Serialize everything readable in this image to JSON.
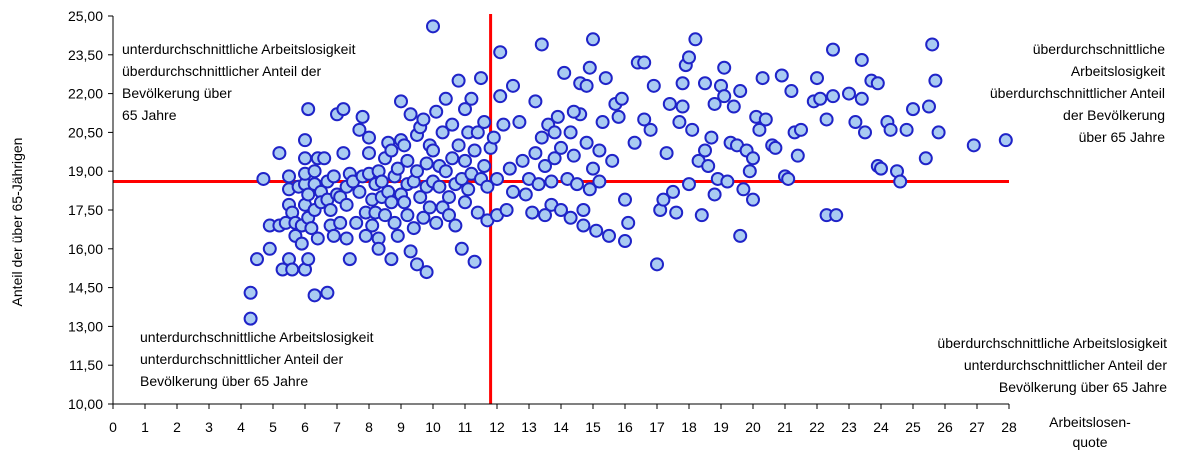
{
  "chart_data": {
    "type": "scatter",
    "title": "",
    "xlabel_lines": [
      "Arbeitslosen-",
      "quote"
    ],
    "ylabel": "Anteil der über 65-Jährigen",
    "xlim": [
      0,
      28
    ],
    "ylim": [
      10,
      25
    ],
    "x_ticks": [
      "0",
      "1",
      "2",
      "3",
      "4",
      "5",
      "6",
      "7",
      "8",
      "9",
      "10",
      "11",
      "12",
      "13",
      "14",
      "15",
      "16",
      "17",
      "18",
      "19",
      "20",
      "21",
      "22",
      "23",
      "24",
      "25",
      "26",
      "27",
      "28"
    ],
    "y_ticks": [
      "10,00",
      "11,50",
      "13,00",
      "14,50",
      "16,00",
      "17,50",
      "19,00",
      "20,50",
      "22,00",
      "23,50",
      "25,00"
    ],
    "grid": false,
    "reference_lines": {
      "x": 11.8,
      "y": 18.6,
      "color": "#ff0000"
    },
    "marker": {
      "fill": "#a9cbf2",
      "stroke": "#1f23c8"
    },
    "quadrant_labels": {
      "top_left": [
        "unterdurchschnittliche Arbeitslosigkeit",
        "überdurchschnittlicher Anteil der",
        "Bevölkerung über",
        "65 Jahre"
      ],
      "top_right": [
        "überdurchschnittliche",
        "Arbeitslosigkeit",
        "überdurchschnittlicher Anteil",
        "der Bevölkerung",
        "über 65 Jahre"
      ],
      "bottom_left": [
        "unterdurchschnittliche Arbeitslosigkeit",
        "unterdurchschnittlicher Anteil der",
        "Bevölkerung über 65 Jahre"
      ],
      "bottom_right": [
        "überdurchschnittliche Arbeitslosigkeit",
        "unterdurchschnittlicher Anteil der",
        "Bevölkerung über 65 Jahre"
      ]
    },
    "points": [
      [
        4.3,
        13.3
      ],
      [
        4.3,
        14.3
      ],
      [
        4.5,
        15.6
      ],
      [
        4.7,
        18.7
      ],
      [
        4.9,
        16.9
      ],
      [
        4.9,
        16.0
      ],
      [
        5.2,
        16.9
      ],
      [
        5.2,
        19.7
      ],
      [
        5.3,
        15.2
      ],
      [
        5.4,
        17.0
      ],
      [
        5.5,
        18.8
      ],
      [
        5.5,
        17.7
      ],
      [
        5.5,
        18.3
      ],
      [
        5.5,
        15.6
      ],
      [
        5.6,
        15.2
      ],
      [
        5.6,
        17.4
      ],
      [
        5.7,
        16.5
      ],
      [
        5.7,
        17.0
      ],
      [
        5.8,
        18.4
      ],
      [
        5.9,
        16.9
      ],
      [
        5.9,
        16.2
      ],
      [
        6.0,
        15.2
      ],
      [
        6.0,
        17.7
      ],
      [
        6.0,
        18.5
      ],
      [
        6.0,
        18.9
      ],
      [
        6.0,
        19.5
      ],
      [
        6.0,
        20.2
      ],
      [
        6.1,
        21.4
      ],
      [
        6.1,
        18.1
      ],
      [
        6.1,
        17.2
      ],
      [
        6.1,
        15.6
      ],
      [
        6.2,
        16.8
      ],
      [
        6.3,
        14.2
      ],
      [
        6.3,
        19.0
      ],
      [
        6.3,
        18.5
      ],
      [
        6.3,
        17.5
      ],
      [
        6.4,
        16.4
      ],
      [
        6.4,
        19.5
      ],
      [
        6.5,
        18.2
      ],
      [
        6.5,
        17.8
      ],
      [
        6.6,
        19.5
      ],
      [
        6.7,
        14.3
      ],
      [
        6.7,
        18.6
      ],
      [
        6.7,
        17.9
      ],
      [
        6.8,
        17.5
      ],
      [
        6.8,
        16.9
      ],
      [
        6.9,
        18.8
      ],
      [
        6.9,
        16.5
      ],
      [
        7.0,
        18.1
      ],
      [
        7.0,
        21.2
      ],
      [
        7.1,
        17.0
      ],
      [
        7.1,
        18.0
      ],
      [
        7.2,
        19.7
      ],
      [
        7.2,
        21.4
      ],
      [
        7.3,
        18.4
      ],
      [
        7.3,
        17.7
      ],
      [
        7.3,
        16.4
      ],
      [
        7.4,
        15.6
      ],
      [
        7.4,
        18.9
      ],
      [
        7.5,
        18.6
      ],
      [
        7.6,
        17.0
      ],
      [
        7.7,
        18.2
      ],
      [
        7.7,
        20.6
      ],
      [
        7.8,
        21.1
      ],
      [
        7.8,
        18.8
      ],
      [
        7.9,
        17.4
      ],
      [
        7.9,
        16.5
      ],
      [
        8.0,
        18.9
      ],
      [
        8.0,
        19.7
      ],
      [
        8.0,
        20.3
      ],
      [
        8.1,
        17.9
      ],
      [
        8.1,
        16.9
      ],
      [
        8.2,
        18.5
      ],
      [
        8.2,
        17.4
      ],
      [
        8.3,
        16.4
      ],
      [
        8.3,
        19.0
      ],
      [
        8.3,
        16.0
      ],
      [
        8.4,
        18.6
      ],
      [
        8.4,
        18.0
      ],
      [
        8.5,
        17.3
      ],
      [
        8.5,
        19.5
      ],
      [
        8.6,
        18.2
      ],
      [
        8.6,
        20.1
      ],
      [
        8.7,
        15.6
      ],
      [
        8.7,
        17.8
      ],
      [
        8.7,
        19.8
      ],
      [
        8.8,
        18.8
      ],
      [
        8.8,
        17.0
      ],
      [
        8.9,
        19.1
      ],
      [
        8.9,
        16.5
      ],
      [
        9.0,
        20.2
      ],
      [
        9.0,
        18.1
      ],
      [
        9.0,
        21.7
      ],
      [
        9.1,
        17.8
      ],
      [
        9.1,
        20.0
      ],
      [
        9.2,
        18.5
      ],
      [
        9.2,
        17.3
      ],
      [
        9.2,
        19.4
      ],
      [
        9.3,
        15.9
      ],
      [
        9.3,
        21.2
      ],
      [
        9.4,
        18.6
      ],
      [
        9.4,
        16.8
      ],
      [
        9.5,
        20.4
      ],
      [
        9.5,
        19.0
      ],
      [
        9.5,
        15.4
      ],
      [
        9.6,
        20.7
      ],
      [
        9.6,
        18.0
      ],
      [
        9.7,
        21.0
      ],
      [
        9.7,
        17.2
      ],
      [
        9.8,
        15.1
      ],
      [
        9.8,
        19.3
      ],
      [
        9.8,
        18.4
      ],
      [
        9.9,
        20.0
      ],
      [
        9.9,
        17.6
      ],
      [
        10.0,
        24.6
      ],
      [
        10.0,
        19.8
      ],
      [
        10.0,
        18.6
      ],
      [
        10.1,
        21.3
      ],
      [
        10.1,
        17.0
      ],
      [
        10.2,
        19.2
      ],
      [
        10.2,
        18.4
      ],
      [
        10.3,
        20.5
      ],
      [
        10.3,
        17.6
      ],
      [
        10.4,
        21.8
      ],
      [
        10.4,
        19.0
      ],
      [
        10.5,
        18.0
      ],
      [
        10.5,
        17.3
      ],
      [
        10.6,
        20.8
      ],
      [
        10.6,
        19.5
      ],
      [
        10.7,
        18.5
      ],
      [
        10.7,
        16.9
      ],
      [
        10.8,
        22.5
      ],
      [
        10.8,
        20.0
      ],
      [
        10.9,
        18.7
      ],
      [
        10.9,
        16.0
      ],
      [
        11.0,
        21.4
      ],
      [
        11.0,
        19.4
      ],
      [
        11.0,
        17.8
      ],
      [
        11.1,
        18.3
      ],
      [
        11.1,
        20.5
      ],
      [
        11.2,
        21.8
      ],
      [
        11.2,
        18.9
      ],
      [
        11.3,
        15.5
      ],
      [
        11.3,
        19.8
      ],
      [
        11.4,
        17.4
      ],
      [
        11.4,
        20.5
      ],
      [
        11.5,
        22.6
      ],
      [
        11.5,
        18.7
      ],
      [
        11.6,
        20.9
      ],
      [
        11.6,
        19.2
      ],
      [
        11.7,
        17.1
      ],
      [
        11.7,
        18.4
      ],
      [
        11.8,
        19.9
      ],
      [
        11.9,
        20.3
      ],
      [
        12.0,
        17.3
      ],
      [
        12.0,
        18.7
      ],
      [
        12.1,
        23.6
      ],
      [
        12.1,
        21.9
      ],
      [
        12.2,
        20.8
      ],
      [
        12.3,
        17.5
      ],
      [
        12.4,
        19.1
      ],
      [
        12.5,
        22.3
      ],
      [
        12.5,
        18.2
      ],
      [
        12.7,
        20.9
      ],
      [
        12.8,
        19.4
      ],
      [
        12.9,
        18.1
      ],
      [
        13.0,
        18.7
      ],
      [
        13.1,
        17.4
      ],
      [
        13.2,
        21.7
      ],
      [
        13.2,
        19.7
      ],
      [
        13.3,
        18.5
      ],
      [
        13.4,
        23.9
      ],
      [
        13.4,
        20.3
      ],
      [
        13.5,
        17.3
      ],
      [
        13.5,
        19.2
      ],
      [
        13.6,
        20.8
      ],
      [
        13.7,
        17.7
      ],
      [
        13.7,
        18.6
      ],
      [
        13.8,
        19.5
      ],
      [
        13.8,
        20.5
      ],
      [
        13.9,
        21.1
      ],
      [
        14.0,
        17.5
      ],
      [
        14.0,
        19.9
      ],
      [
        14.1,
        22.8
      ],
      [
        14.2,
        18.7
      ],
      [
        14.3,
        20.5
      ],
      [
        14.3,
        17.2
      ],
      [
        14.4,
        19.6
      ],
      [
        14.5,
        18.5
      ],
      [
        14.6,
        22.4
      ],
      [
        14.6,
        21.2
      ],
      [
        14.7,
        17.5
      ],
      [
        14.7,
        16.9
      ],
      [
        14.8,
        22.3
      ],
      [
        14.8,
        20.1
      ],
      [
        14.9,
        18.3
      ],
      [
        14.9,
        23.0
      ],
      [
        15.0,
        24.1
      ],
      [
        15.0,
        19.1
      ],
      [
        15.1,
        16.7
      ],
      [
        15.2,
        18.6
      ],
      [
        15.2,
        19.8
      ],
      [
        15.3,
        20.9
      ],
      [
        15.4,
        22.6
      ],
      [
        15.5,
        16.5
      ],
      [
        15.6,
        19.4
      ],
      [
        15.7,
        21.6
      ],
      [
        15.8,
        21.1
      ],
      [
        15.9,
        21.8
      ],
      [
        16.0,
        17.9
      ],
      [
        16.0,
        16.3
      ],
      [
        16.1,
        17.0
      ],
      [
        16.3,
        20.1
      ],
      [
        16.4,
        23.2
      ],
      [
        16.6,
        23.2
      ],
      [
        16.6,
        21.0
      ],
      [
        16.8,
        20.6
      ],
      [
        16.9,
        22.3
      ],
      [
        17.0,
        15.4
      ],
      [
        17.1,
        17.5
      ],
      [
        17.2,
        17.9
      ],
      [
        17.3,
        19.7
      ],
      [
        17.4,
        21.6
      ],
      [
        17.5,
        18.2
      ],
      [
        17.6,
        17.4
      ],
      [
        17.7,
        20.9
      ],
      [
        17.8,
        21.5
      ],
      [
        17.8,
        22.4
      ],
      [
        17.9,
        23.1
      ],
      [
        18.0,
        18.5
      ],
      [
        18.0,
        23.4
      ],
      [
        18.1,
        20.6
      ],
      [
        18.2,
        24.1
      ],
      [
        18.3,
        19.4
      ],
      [
        18.4,
        17.3
      ],
      [
        18.5,
        22.4
      ],
      [
        18.5,
        19.8
      ],
      [
        18.6,
        19.2
      ],
      [
        18.7,
        20.3
      ],
      [
        18.8,
        21.6
      ],
      [
        18.8,
        18.1
      ],
      [
        18.9,
        18.7
      ],
      [
        19.0,
        22.3
      ],
      [
        19.1,
        23.0
      ],
      [
        19.1,
        21.9
      ],
      [
        19.2,
        18.6
      ],
      [
        19.3,
        20.1
      ],
      [
        19.4,
        21.5
      ],
      [
        19.5,
        20.0
      ],
      [
        19.6,
        22.1
      ],
      [
        19.6,
        16.5
      ],
      [
        19.7,
        18.3
      ],
      [
        19.8,
        19.8
      ],
      [
        19.9,
        19.0
      ],
      [
        20.0,
        19.5
      ],
      [
        20.0,
        17.9
      ],
      [
        20.1,
        21.1
      ],
      [
        20.2,
        20.6
      ],
      [
        20.3,
        22.6
      ],
      [
        20.4,
        21.0
      ],
      [
        20.6,
        20.0
      ],
      [
        20.7,
        19.9
      ],
      [
        20.9,
        22.7
      ],
      [
        21.0,
        18.8
      ],
      [
        21.1,
        18.7
      ],
      [
        21.2,
        22.1
      ],
      [
        21.3,
        20.5
      ],
      [
        21.4,
        19.6
      ],
      [
        21.5,
        20.6
      ],
      [
        21.9,
        21.7
      ],
      [
        22.0,
        22.6
      ],
      [
        22.1,
        21.8
      ],
      [
        22.3,
        17.3
      ],
      [
        22.3,
        21.0
      ],
      [
        22.5,
        23.7
      ],
      [
        22.5,
        21.9
      ],
      [
        22.6,
        17.3
      ],
      [
        23.0,
        22.0
      ],
      [
        23.2,
        20.9
      ],
      [
        23.4,
        21.8
      ],
      [
        23.4,
        23.3
      ],
      [
        23.5,
        20.5
      ],
      [
        23.7,
        22.5
      ],
      [
        23.9,
        19.2
      ],
      [
        23.9,
        22.4
      ],
      [
        24.0,
        19.1
      ],
      [
        24.2,
        20.9
      ],
      [
        24.3,
        20.6
      ],
      [
        24.5,
        19.0
      ],
      [
        24.6,
        18.6
      ],
      [
        24.8,
        20.6
      ],
      [
        25.0,
        21.4
      ],
      [
        25.4,
        19.5
      ],
      [
        25.5,
        21.5
      ],
      [
        25.6,
        23.9
      ],
      [
        25.7,
        22.5
      ],
      [
        25.8,
        20.5
      ],
      [
        26.9,
        20.0
      ],
      [
        27.9,
        20.2
      ],
      [
        14.4,
        21.3
      ]
    ]
  }
}
